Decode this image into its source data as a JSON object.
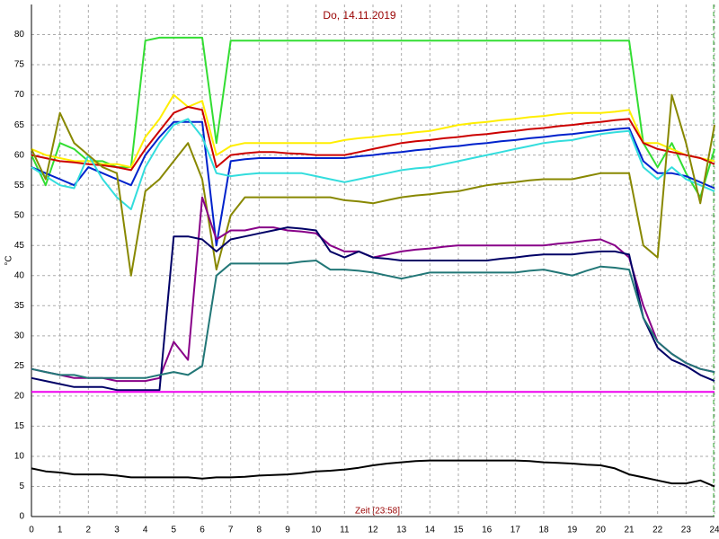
{
  "chart_data": {
    "type": "line",
    "title": "Do, 14.11.2019",
    "xlabel": "Zeit [23:58]",
    "ylabel": "°C",
    "x": [
      0,
      0.5,
      1,
      1.5,
      2,
      2.5,
      3,
      3.5,
      4,
      4.5,
      5,
      5.5,
      6,
      6.5,
      7,
      7.5,
      8,
      8.5,
      9,
      9.5,
      10,
      10.5,
      11,
      11.5,
      12,
      12.5,
      13,
      13.5,
      14,
      14.5,
      15,
      15.5,
      16,
      16.5,
      17,
      17.5,
      18,
      18.5,
      19,
      19.5,
      20,
      20.5,
      21,
      21.5,
      22,
      22.5,
      23,
      23.5,
      24
    ],
    "xlim": [
      0,
      24
    ],
    "xticks": [
      0,
      1,
      2,
      3,
      4,
      5,
      6,
      7,
      8,
      9,
      10,
      11,
      12,
      13,
      14,
      15,
      16,
      17,
      18,
      19,
      20,
      21,
      22,
      23,
      24
    ],
    "ylim": [
      0,
      85
    ],
    "yticks": [
      0,
      5,
      10,
      15,
      20,
      25,
      30,
      35,
      40,
      45,
      50,
      55,
      60,
      65,
      70,
      75,
      80
    ],
    "grid": true,
    "series": [
      {
        "color": "#33dd33",
        "values": [
          60,
          55,
          62,
          61,
          59,
          59,
          58,
          58,
          79,
          79.5,
          79.5,
          79.5,
          79.5,
          62,
          79,
          79,
          79,
          79,
          79,
          79,
          79,
          79,
          79,
          79,
          79,
          79,
          79,
          79,
          79,
          79,
          79,
          79,
          79,
          79,
          79,
          79,
          79,
          79,
          79,
          79,
          79,
          79,
          79,
          62,
          58,
          62,
          57,
          53,
          61
        ]
      },
      {
        "color": "#ffee00",
        "values": [
          61,
          60,
          59.5,
          59,
          59,
          58.5,
          58.5,
          58,
          63,
          66,
          70,
          68,
          69,
          60,
          61.5,
          62,
          62,
          62,
          62,
          62,
          62,
          62,
          62.5,
          62.8,
          63,
          63.3,
          63.5,
          63.8,
          64,
          64.5,
          65,
          65.3,
          65.5,
          65.8,
          66,
          66.3,
          66.5,
          66.8,
          67,
          67,
          67,
          67.2,
          67.5,
          62,
          62,
          61,
          60,
          59.5,
          59
        ]
      },
      {
        "color": "#cc0000",
        "values": [
          60,
          59.5,
          59,
          58.8,
          58.5,
          58.3,
          58,
          57.5,
          61,
          64,
          67,
          68,
          67.5,
          58,
          60,
          60.3,
          60.5,
          60.5,
          60.3,
          60.2,
          60,
          60,
          60,
          60.5,
          61,
          61.5,
          62,
          62.3,
          62.5,
          62.8,
          63,
          63.3,
          63.5,
          63.8,
          64,
          64.3,
          64.5,
          64.8,
          65,
          65.3,
          65.5,
          65.8,
          66,
          62,
          61,
          60.5,
          60,
          59.5,
          58.5
        ]
      },
      {
        "color": "#0022cc",
        "values": [
          58,
          57,
          56,
          55,
          58,
          57,
          56,
          55,
          60,
          63,
          65.5,
          65.5,
          65.5,
          45,
          59,
          59.3,
          59.5,
          59.5,
          59.5,
          59.5,
          59.5,
          59.5,
          59.5,
          59.8,
          60,
          60.3,
          60.5,
          60.8,
          61,
          61.3,
          61.5,
          61.8,
          62,
          62.3,
          62.5,
          62.8,
          63,
          63.3,
          63.5,
          63.8,
          64,
          64.3,
          64.5,
          59,
          57,
          57,
          56.5,
          55.5,
          54.5
        ]
      },
      {
        "color": "#33dddd",
        "values": [
          58,
          56.5,
          55,
          54.5,
          60,
          56,
          53,
          51,
          58,
          62,
          65,
          66,
          63,
          57,
          56.5,
          56.8,
          57,
          57,
          57,
          57,
          56.5,
          56,
          55.5,
          56,
          56.5,
          57,
          57.5,
          57.8,
          58,
          58.5,
          59,
          59.5,
          60,
          60.5,
          61,
          61.5,
          62,
          62.3,
          62.5,
          63,
          63.5,
          63.8,
          64,
          58,
          56,
          58,
          56,
          55,
          54
        ]
      },
      {
        "color": "#888800",
        "values": [
          61,
          56,
          67,
          62,
          60,
          58,
          57,
          40,
          54,
          56,
          59,
          62,
          56,
          41,
          50,
          53,
          53,
          53,
          53,
          53,
          53,
          53,
          52.5,
          52.3,
          52,
          52.5,
          53,
          53.3,
          53.5,
          53.8,
          54,
          54.5,
          55,
          55.3,
          55.5,
          55.8,
          56,
          56,
          56,
          56.5,
          57,
          57,
          57,
          45,
          43,
          70,
          62,
          52,
          65
        ]
      },
      {
        "color": "#880088",
        "values": [
          24.5,
          24,
          23.5,
          23,
          23,
          23,
          22.5,
          22.5,
          22.5,
          23,
          29,
          26,
          53,
          46,
          47.5,
          47.5,
          48,
          48,
          47.5,
          47.3,
          47,
          45,
          44,
          44,
          43,
          43.5,
          44,
          44.3,
          44.5,
          44.8,
          45,
          45,
          45,
          45,
          45,
          45,
          45,
          45.3,
          45.5,
          45.8,
          46,
          45,
          43,
          35,
          29,
          27,
          25.5,
          24.5,
          24
        ]
      },
      {
        "color": "#000066",
        "values": [
          23,
          22.5,
          22,
          21.5,
          21.5,
          21.5,
          21,
          21,
          21,
          21,
          46.5,
          46.5,
          46,
          44,
          46,
          46.5,
          47,
          47.5,
          48,
          47.8,
          47.5,
          44,
          43,
          44,
          43,
          42.8,
          42.5,
          42.5,
          42.5,
          42.5,
          42.5,
          42.5,
          42.5,
          42.8,
          43,
          43.3,
          43.5,
          43.5,
          43.5,
          43.8,
          44,
          44,
          43.5,
          33,
          28,
          26,
          25,
          23.5,
          22.5
        ]
      },
      {
        "color": "#227777",
        "values": [
          24.5,
          24,
          23.5,
          23.5,
          23,
          23,
          23,
          23,
          23,
          23.5,
          24,
          23.5,
          25,
          40,
          42,
          42,
          42,
          42,
          42,
          42.3,
          42.5,
          41,
          41,
          40.8,
          40.5,
          40,
          39.5,
          40,
          40.5,
          40.5,
          40.5,
          40.5,
          40.5,
          40.5,
          40.5,
          40.8,
          41,
          40.5,
          40,
          40.8,
          41.5,
          41.3,
          41,
          33,
          29,
          27,
          25.5,
          24.5,
          24
        ]
      },
      {
        "color": "#ee00ee",
        "values": [
          20.7,
          20.7,
          20.7,
          20.7,
          20.7,
          20.7,
          20.7,
          20.7,
          20.7,
          20.7,
          20.7,
          20.7,
          20.7,
          20.7,
          20.7,
          20.7,
          20.7,
          20.7,
          20.7,
          20.7,
          20.7,
          20.7,
          20.7,
          20.7,
          20.7,
          20.7,
          20.7,
          20.7,
          20.7,
          20.7,
          20.7,
          20.7,
          20.7,
          20.7,
          20.7,
          20.7,
          20.7,
          20.7,
          20.7,
          20.7,
          20.7,
          20.7,
          20.7,
          20.7,
          20.7,
          20.7,
          20.7,
          20.7,
          20.7
        ]
      },
      {
        "color": "#000000",
        "values": [
          8,
          7.5,
          7.3,
          7,
          7,
          7,
          6.8,
          6.5,
          6.5,
          6.5,
          6.5,
          6.5,
          6.3,
          6.5,
          6.5,
          6.6,
          6.8,
          6.9,
          7,
          7.2,
          7.5,
          7.6,
          7.8,
          8.1,
          8.5,
          8.8,
          9,
          9.2,
          9.3,
          9.3,
          9.3,
          9.3,
          9.3,
          9.3,
          9.3,
          9.2,
          9,
          8.9,
          8.8,
          8.6,
          8.5,
          8,
          7,
          6.5,
          6,
          5.5,
          5.5,
          6,
          5
        ]
      }
    ]
  }
}
